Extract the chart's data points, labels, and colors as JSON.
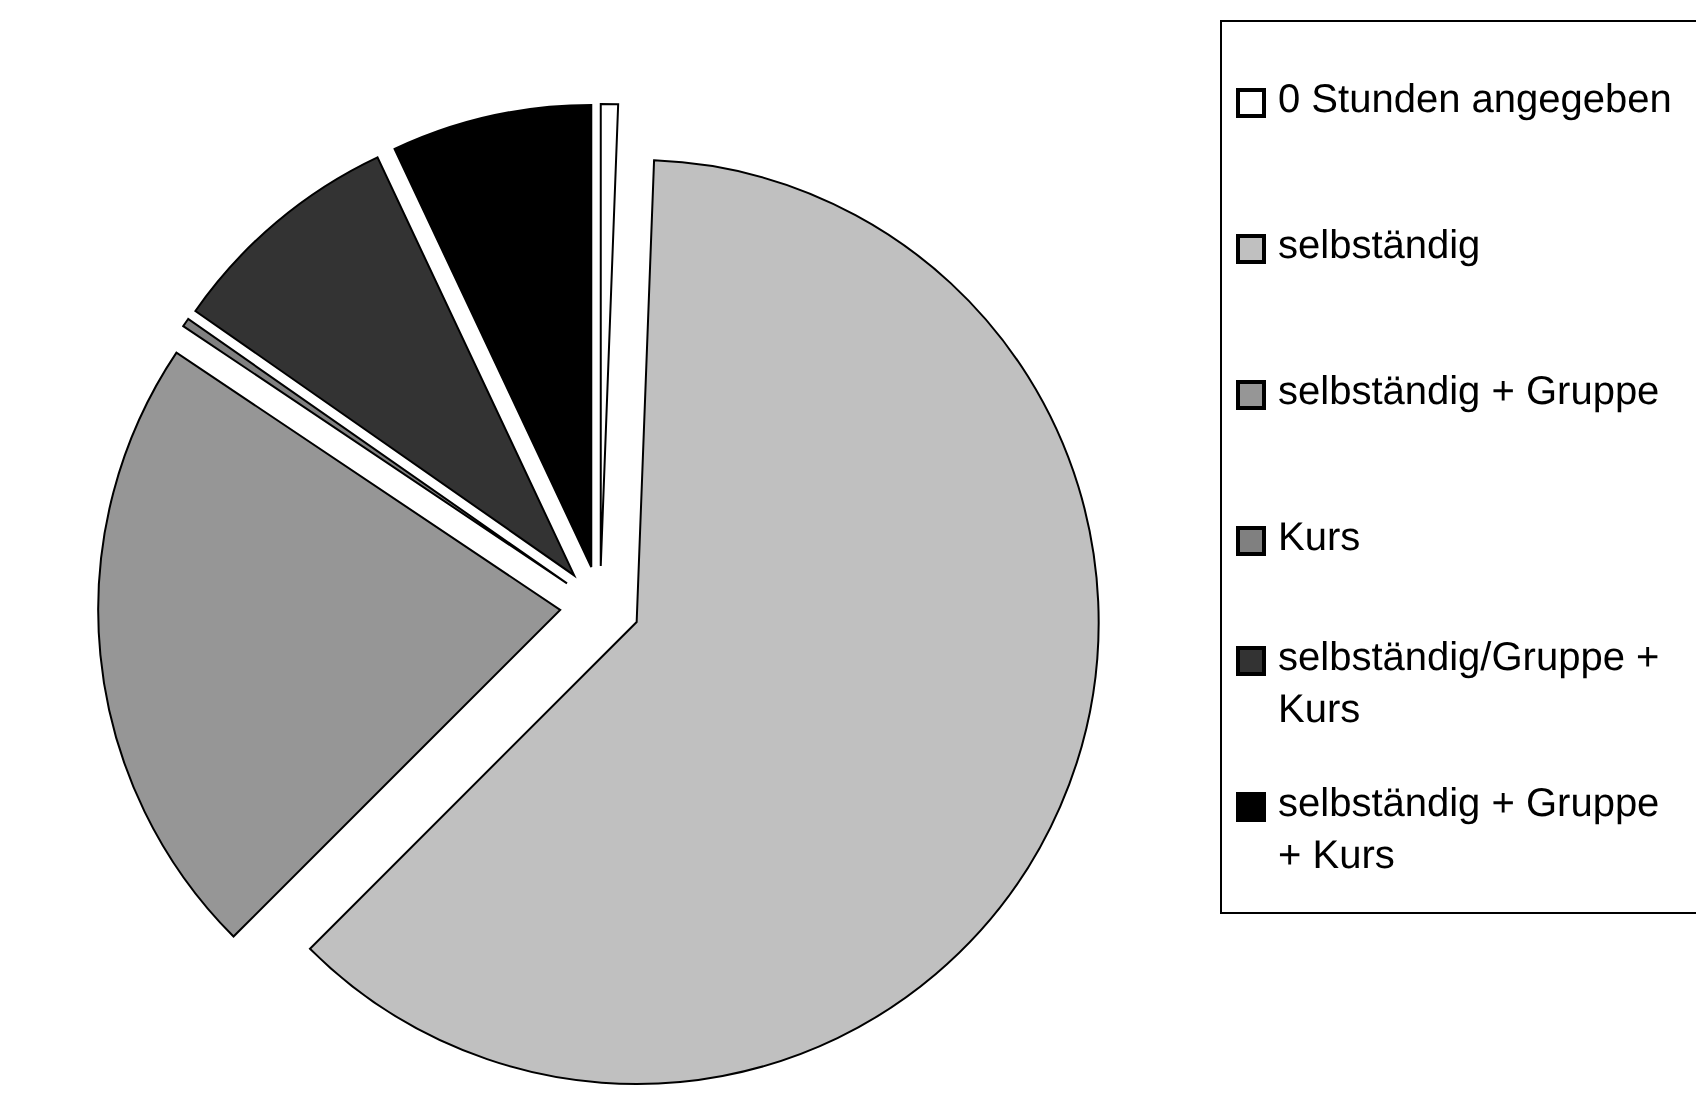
{
  "chart_data": {
    "type": "pie",
    "categories": [
      "0 Stunden angegeben",
      "selbständig",
      "selbständig + Gruppe",
      "Kurs",
      "selbständig/Gruppe + Kurs",
      "selbständig + Gruppe + Kurs"
    ],
    "values": [
      0.6,
      61.9,
      21.9,
      0.3,
      8.3,
      7.0
    ],
    "colors": [
      "#ffffff",
      "#c0c0c0",
      "#969696",
      "#808080",
      "#333333",
      "#000000"
    ],
    "legend": "right"
  }
}
